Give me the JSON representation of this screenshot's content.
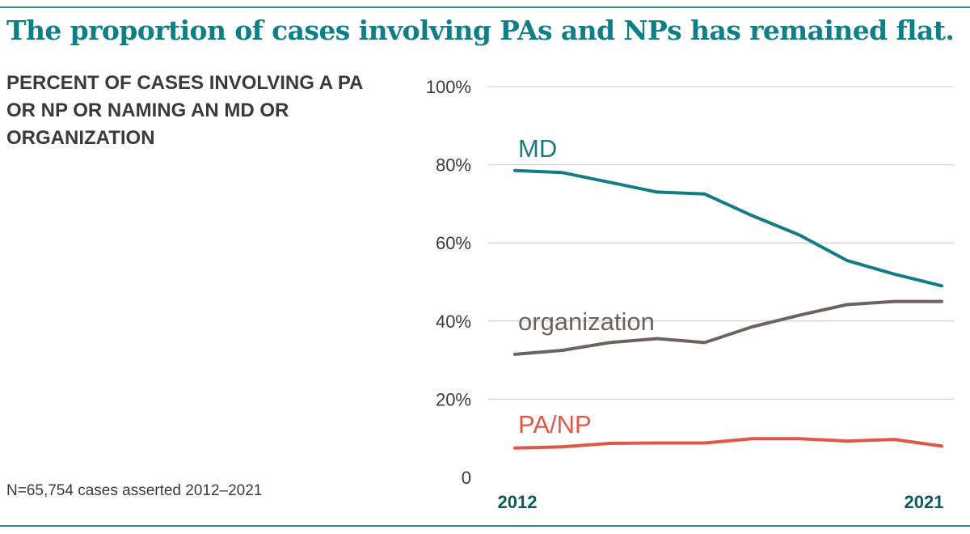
{
  "title": "The proportion of cases involving PAs and NPs has remained flat.",
  "subtitle": "PERCENT OF CASES INVOLVING A PA OR NP OR NAMING AN MD OR ORGANIZATION",
  "note": "N=65,754 cases asserted 2012–2021",
  "chart_data": {
    "type": "line",
    "title": "The proportion of cases involving PAs and NPs has remained flat.",
    "subtitle": "PERCENT OF CASES INVOLVING A PA OR NP OR NAMING AN MD OR ORGANIZATION",
    "xlabel": "",
    "ylabel": "",
    "x": [
      2012,
      2013,
      2014,
      2015,
      2016,
      2017,
      2018,
      2019,
      2020,
      2021
    ],
    "x_tick_labels": [
      "2012",
      "2021"
    ],
    "ylim": [
      0,
      100
    ],
    "y_ticks": [
      0,
      20,
      40,
      60,
      80,
      100
    ],
    "y_tick_labels": [
      "0",
      "20%",
      "40%",
      "60%",
      "80%",
      "100%"
    ],
    "grid": true,
    "legend": "inline labels",
    "series": [
      {
        "name": "MD",
        "color": "#137c84",
        "values": [
          78.5,
          78,
          75.5,
          73,
          72.5,
          67,
          62,
          55.5,
          52,
          49
        ]
      },
      {
        "name": "organization",
        "color": "#6e625e",
        "values": [
          31.5,
          32.5,
          34.5,
          35.5,
          34.5,
          38.5,
          41.5,
          44.2,
          45,
          45
        ]
      },
      {
        "name": "PA/NP",
        "color": "#e0574a",
        "values": [
          7.5,
          7.8,
          8.7,
          8.8,
          8.8,
          9.9,
          9.9,
          9.3,
          9.7,
          8
        ]
      }
    ]
  }
}
